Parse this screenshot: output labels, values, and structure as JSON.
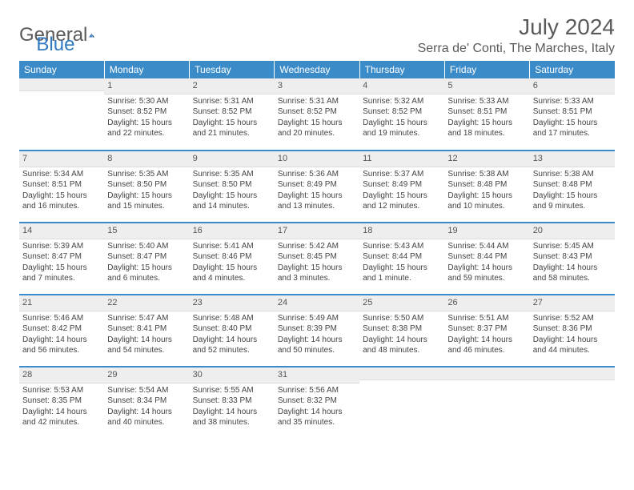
{
  "logo": {
    "word1": "General",
    "word2": "Blue"
  },
  "title": "July 2024",
  "location": "Serra de' Conti, The Marches, Italy",
  "colors": {
    "header_bg": "#3b8bc9",
    "header_text": "#ffffff",
    "daynum_bg": "#eeeeee",
    "border": "#3b8bc9",
    "text": "#444444",
    "logo_gray": "#5a5a5a",
    "logo_blue": "#2f7ac0"
  },
  "weekdays": [
    "Sunday",
    "Monday",
    "Tuesday",
    "Wednesday",
    "Thursday",
    "Friday",
    "Saturday"
  ],
  "weeks": [
    [
      {
        "num": "",
        "sunrise": "",
        "sunset": "",
        "daylight": ""
      },
      {
        "num": "1",
        "sunrise": "Sunrise: 5:30 AM",
        "sunset": "Sunset: 8:52 PM",
        "daylight": "Daylight: 15 hours and 22 minutes."
      },
      {
        "num": "2",
        "sunrise": "Sunrise: 5:31 AM",
        "sunset": "Sunset: 8:52 PM",
        "daylight": "Daylight: 15 hours and 21 minutes."
      },
      {
        "num": "3",
        "sunrise": "Sunrise: 5:31 AM",
        "sunset": "Sunset: 8:52 PM",
        "daylight": "Daylight: 15 hours and 20 minutes."
      },
      {
        "num": "4",
        "sunrise": "Sunrise: 5:32 AM",
        "sunset": "Sunset: 8:52 PM",
        "daylight": "Daylight: 15 hours and 19 minutes."
      },
      {
        "num": "5",
        "sunrise": "Sunrise: 5:33 AM",
        "sunset": "Sunset: 8:51 PM",
        "daylight": "Daylight: 15 hours and 18 minutes."
      },
      {
        "num": "6",
        "sunrise": "Sunrise: 5:33 AM",
        "sunset": "Sunset: 8:51 PM",
        "daylight": "Daylight: 15 hours and 17 minutes."
      }
    ],
    [
      {
        "num": "7",
        "sunrise": "Sunrise: 5:34 AM",
        "sunset": "Sunset: 8:51 PM",
        "daylight": "Daylight: 15 hours and 16 minutes."
      },
      {
        "num": "8",
        "sunrise": "Sunrise: 5:35 AM",
        "sunset": "Sunset: 8:50 PM",
        "daylight": "Daylight: 15 hours and 15 minutes."
      },
      {
        "num": "9",
        "sunrise": "Sunrise: 5:35 AM",
        "sunset": "Sunset: 8:50 PM",
        "daylight": "Daylight: 15 hours and 14 minutes."
      },
      {
        "num": "10",
        "sunrise": "Sunrise: 5:36 AM",
        "sunset": "Sunset: 8:49 PM",
        "daylight": "Daylight: 15 hours and 13 minutes."
      },
      {
        "num": "11",
        "sunrise": "Sunrise: 5:37 AM",
        "sunset": "Sunset: 8:49 PM",
        "daylight": "Daylight: 15 hours and 12 minutes."
      },
      {
        "num": "12",
        "sunrise": "Sunrise: 5:38 AM",
        "sunset": "Sunset: 8:48 PM",
        "daylight": "Daylight: 15 hours and 10 minutes."
      },
      {
        "num": "13",
        "sunrise": "Sunrise: 5:38 AM",
        "sunset": "Sunset: 8:48 PM",
        "daylight": "Daylight: 15 hours and 9 minutes."
      }
    ],
    [
      {
        "num": "14",
        "sunrise": "Sunrise: 5:39 AM",
        "sunset": "Sunset: 8:47 PM",
        "daylight": "Daylight: 15 hours and 7 minutes."
      },
      {
        "num": "15",
        "sunrise": "Sunrise: 5:40 AM",
        "sunset": "Sunset: 8:47 PM",
        "daylight": "Daylight: 15 hours and 6 minutes."
      },
      {
        "num": "16",
        "sunrise": "Sunrise: 5:41 AM",
        "sunset": "Sunset: 8:46 PM",
        "daylight": "Daylight: 15 hours and 4 minutes."
      },
      {
        "num": "17",
        "sunrise": "Sunrise: 5:42 AM",
        "sunset": "Sunset: 8:45 PM",
        "daylight": "Daylight: 15 hours and 3 minutes."
      },
      {
        "num": "18",
        "sunrise": "Sunrise: 5:43 AM",
        "sunset": "Sunset: 8:44 PM",
        "daylight": "Daylight: 15 hours and 1 minute."
      },
      {
        "num": "19",
        "sunrise": "Sunrise: 5:44 AM",
        "sunset": "Sunset: 8:44 PM",
        "daylight": "Daylight: 14 hours and 59 minutes."
      },
      {
        "num": "20",
        "sunrise": "Sunrise: 5:45 AM",
        "sunset": "Sunset: 8:43 PM",
        "daylight": "Daylight: 14 hours and 58 minutes."
      }
    ],
    [
      {
        "num": "21",
        "sunrise": "Sunrise: 5:46 AM",
        "sunset": "Sunset: 8:42 PM",
        "daylight": "Daylight: 14 hours and 56 minutes."
      },
      {
        "num": "22",
        "sunrise": "Sunrise: 5:47 AM",
        "sunset": "Sunset: 8:41 PM",
        "daylight": "Daylight: 14 hours and 54 minutes."
      },
      {
        "num": "23",
        "sunrise": "Sunrise: 5:48 AM",
        "sunset": "Sunset: 8:40 PM",
        "daylight": "Daylight: 14 hours and 52 minutes."
      },
      {
        "num": "24",
        "sunrise": "Sunrise: 5:49 AM",
        "sunset": "Sunset: 8:39 PM",
        "daylight": "Daylight: 14 hours and 50 minutes."
      },
      {
        "num": "25",
        "sunrise": "Sunrise: 5:50 AM",
        "sunset": "Sunset: 8:38 PM",
        "daylight": "Daylight: 14 hours and 48 minutes."
      },
      {
        "num": "26",
        "sunrise": "Sunrise: 5:51 AM",
        "sunset": "Sunset: 8:37 PM",
        "daylight": "Daylight: 14 hours and 46 minutes."
      },
      {
        "num": "27",
        "sunrise": "Sunrise: 5:52 AM",
        "sunset": "Sunset: 8:36 PM",
        "daylight": "Daylight: 14 hours and 44 minutes."
      }
    ],
    [
      {
        "num": "28",
        "sunrise": "Sunrise: 5:53 AM",
        "sunset": "Sunset: 8:35 PM",
        "daylight": "Daylight: 14 hours and 42 minutes."
      },
      {
        "num": "29",
        "sunrise": "Sunrise: 5:54 AM",
        "sunset": "Sunset: 8:34 PM",
        "daylight": "Daylight: 14 hours and 40 minutes."
      },
      {
        "num": "30",
        "sunrise": "Sunrise: 5:55 AM",
        "sunset": "Sunset: 8:33 PM",
        "daylight": "Daylight: 14 hours and 38 minutes."
      },
      {
        "num": "31",
        "sunrise": "Sunrise: 5:56 AM",
        "sunset": "Sunset: 8:32 PM",
        "daylight": "Daylight: 14 hours and 35 minutes."
      },
      {
        "num": "",
        "sunrise": "",
        "sunset": "",
        "daylight": ""
      },
      {
        "num": "",
        "sunrise": "",
        "sunset": "",
        "daylight": ""
      },
      {
        "num": "",
        "sunrise": "",
        "sunset": "",
        "daylight": ""
      }
    ]
  ]
}
